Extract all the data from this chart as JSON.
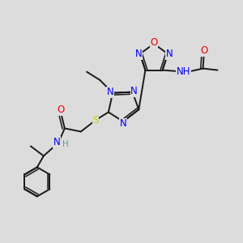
{
  "bg_color": "#dcdcdc",
  "bond_color": "#1a1a1a",
  "atom_colors": {
    "N": "#0000ee",
    "O": "#ee0000",
    "S": "#cccc00",
    "H": "#5f9ea0"
  },
  "lw": 1.4,
  "fs": 8.5,
  "figure_size": [
    3.0,
    3.0
  ],
  "dpi": 100
}
